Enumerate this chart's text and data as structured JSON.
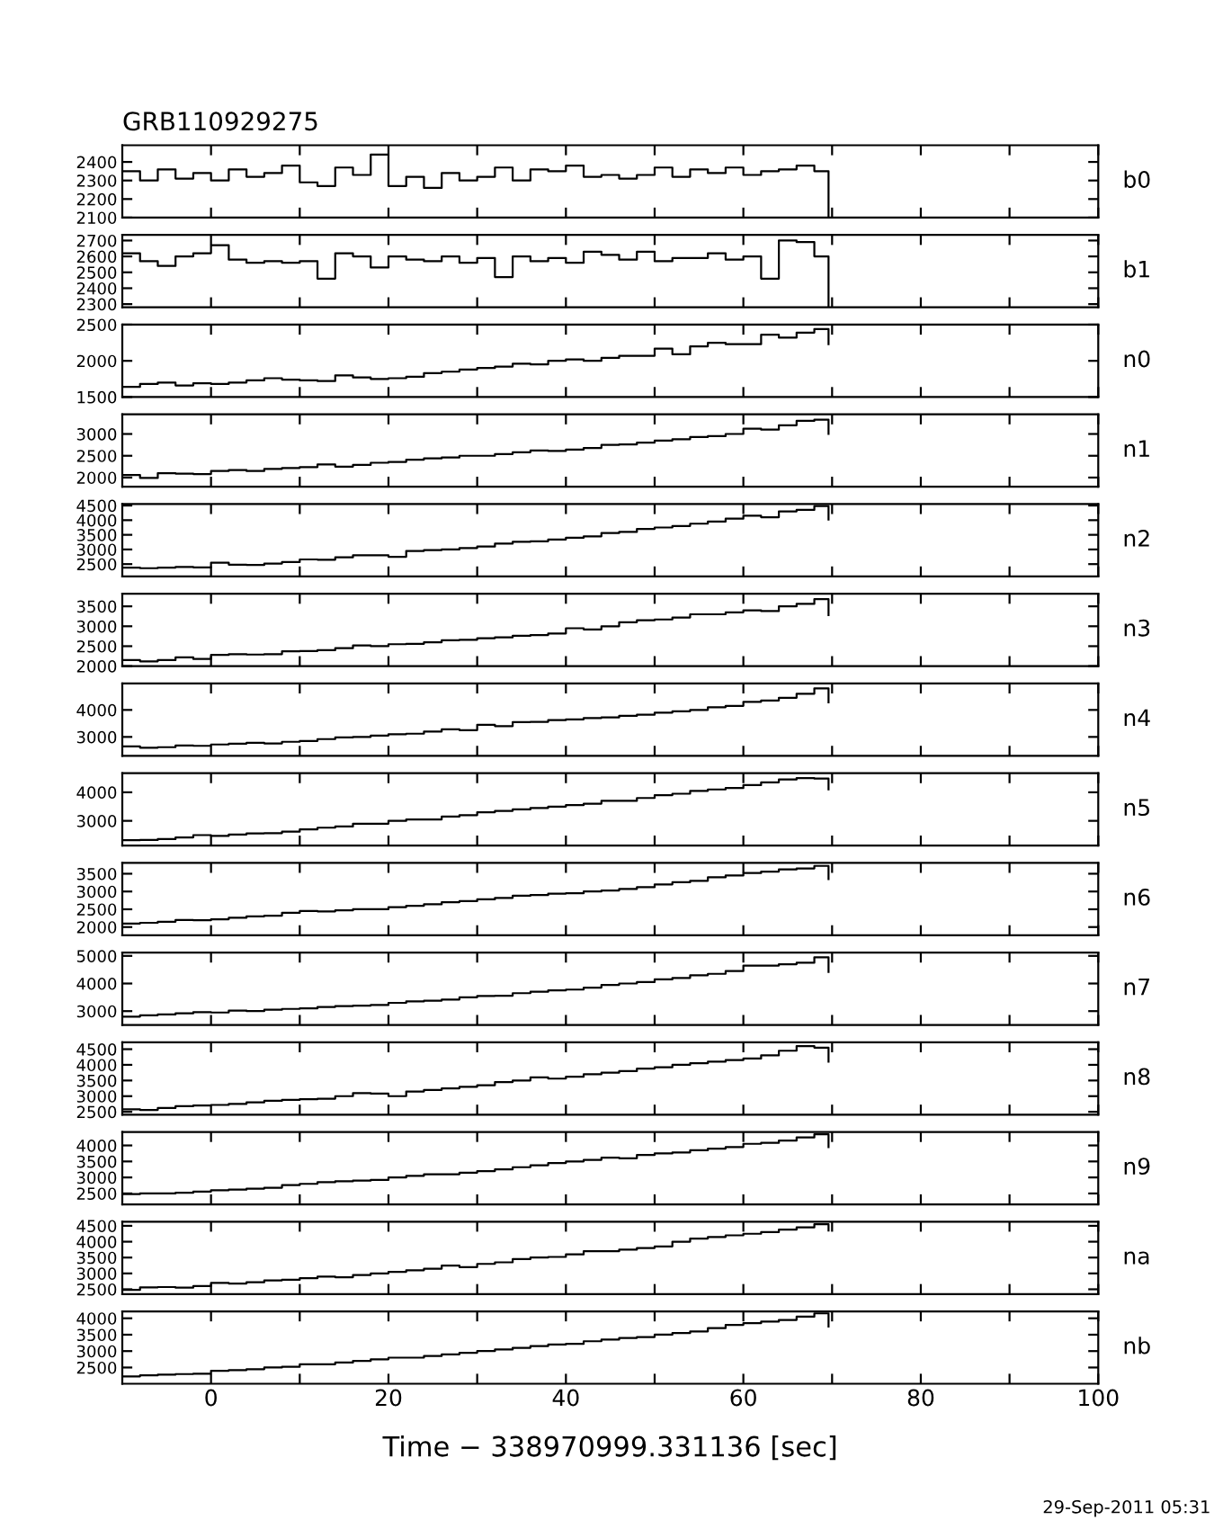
{
  "chart_data": [
    {
      "type": "step",
      "title": "GRB110929275",
      "y2label": "b0",
      "color": "#000000",
      "tick_labels": "y",
      "xlim": [
        -10,
        100
      ],
      "xticks": [
        0,
        {
          "value": 10,
          "label": null
        },
        20,
        {
          "value": 30,
          "label": null
        },
        40,
        {
          "value": 50,
          "label": null
        },
        60,
        {
          "value": 70,
          "label": null
        },
        80,
        {
          "value": 90,
          "label": null
        },
        100
      ],
      "ylim": [
        2100,
        2490
      ],
      "yticks": [
        2100,
        2200,
        2300,
        2400
      ],
      "x": [
        -10,
        -8,
        -6,
        -4,
        -2,
        0,
        2,
        4,
        6,
        8,
        10,
        12,
        14,
        16,
        18,
        20,
        22,
        24,
        26,
        28,
        30,
        32,
        34,
        36,
        38,
        40,
        42,
        44,
        46,
        48,
        50,
        52,
        54,
        56,
        58,
        60,
        62,
        64,
        66,
        68,
        69.6
      ],
      "values": [
        2350,
        2300,
        2360,
        2310,
        2340,
        2300,
        2360,
        2320,
        2340,
        2380,
        2290,
        2270,
        2370,
        2330,
        2440,
        2270,
        2320,
        2260,
        2340,
        2300,
        2320,
        2370,
        2300,
        2360,
        2350,
        2380,
        2320,
        2330,
        2310,
        2330,
        2370,
        2320,
        2360,
        2340,
        2370,
        2330,
        2350,
        2360,
        2380,
        2350,
        2110
      ]
    },
    {
      "type": "step",
      "y2label": "b1",
      "color": "#000000",
      "tick_labels": "y",
      "xlim": [
        -10,
        100
      ],
      "xticks": [
        0,
        {
          "value": 10,
          "label": null
        },
        20,
        {
          "value": 30,
          "label": null
        },
        40,
        {
          "value": 50,
          "label": null
        },
        60,
        {
          "value": 70,
          "label": null
        },
        80,
        {
          "value": 90,
          "label": null
        },
        100
      ],
      "ylim": [
        2280,
        2735
      ],
      "yticks": [
        2300,
        2400,
        2500,
        2600,
        2700
      ],
      "x": [
        -10,
        -8,
        -6,
        -4,
        -2,
        0,
        2,
        4,
        6,
        8,
        10,
        12,
        14,
        16,
        18,
        20,
        22,
        24,
        26,
        28,
        30,
        32,
        34,
        36,
        38,
        40,
        42,
        44,
        46,
        48,
        50,
        52,
        54,
        56,
        58,
        60,
        62,
        64,
        66,
        68,
        69.6
      ],
      "values": [
        2620,
        2570,
        2540,
        2600,
        2620,
        2670,
        2580,
        2560,
        2570,
        2560,
        2570,
        2460,
        2620,
        2600,
        2530,
        2600,
        2580,
        2570,
        2600,
        2560,
        2590,
        2470,
        2600,
        2570,
        2590,
        2560,
        2630,
        2610,
        2580,
        2630,
        2570,
        2590,
        2590,
        2620,
        2580,
        2600,
        2460,
        2700,
        2690,
        2600,
        2290
      ]
    },
    {
      "type": "step",
      "y2label": "n0",
      "color": "#000000",
      "tick_labels": "y",
      "xlim": [
        -10,
        100
      ],
      "xticks": [
        0,
        {
          "value": 10,
          "label": null
        },
        20,
        {
          "value": 30,
          "label": null
        },
        40,
        {
          "value": 50,
          "label": null
        },
        60,
        {
          "value": 70,
          "label": null
        },
        80,
        {
          "value": 90,
          "label": null
        },
        100
      ],
      "ylim": [
        1500,
        2500
      ],
      "yticks": [
        1500,
        2000,
        2500
      ],
      "x": [
        -10,
        -8,
        -6,
        -4,
        -2,
        0,
        2,
        4,
        6,
        8,
        10,
        12,
        14,
        16,
        18,
        20,
        22,
        24,
        26,
        28,
        30,
        32,
        34,
        36,
        38,
        40,
        42,
        44,
        46,
        48,
        50,
        52,
        54,
        56,
        58,
        60,
        62,
        64,
        66,
        68,
        69.6
      ],
      "values": [
        1640,
        1680,
        1700,
        1660,
        1690,
        1680,
        1700,
        1730,
        1760,
        1740,
        1730,
        1720,
        1800,
        1770,
        1750,
        1760,
        1780,
        1830,
        1850,
        1880,
        1900,
        1920,
        1960,
        1950,
        2000,
        2020,
        2000,
        2040,
        2070,
        2070,
        2170,
        2090,
        2200,
        2250,
        2230,
        2230,
        2360,
        2320,
        2390,
        2440,
        2230
      ]
    },
    {
      "type": "step",
      "y2label": "n1",
      "color": "#000000",
      "tick_labels": "y",
      "xlim": [
        -10,
        100
      ],
      "xticks": [
        0,
        {
          "value": 10,
          "label": null
        },
        20,
        {
          "value": 30,
          "label": null
        },
        40,
        {
          "value": 50,
          "label": null
        },
        60,
        {
          "value": 70,
          "label": null
        },
        80,
        {
          "value": 90,
          "label": null
        },
        100
      ],
      "ylim": [
        1790,
        3450
      ],
      "yticks": [
        2000,
        2500,
        3000
      ],
      "x": [
        -10,
        -8,
        -6,
        -4,
        -2,
        0,
        2,
        4,
        6,
        8,
        10,
        12,
        14,
        16,
        18,
        20,
        22,
        24,
        26,
        28,
        30,
        32,
        34,
        36,
        38,
        40,
        42,
        44,
        46,
        48,
        50,
        52,
        54,
        56,
        58,
        60,
        62,
        64,
        66,
        68,
        69.6
      ],
      "values": [
        2060,
        1990,
        2100,
        2090,
        2080,
        2150,
        2170,
        2150,
        2200,
        2220,
        2240,
        2300,
        2250,
        2290,
        2340,
        2360,
        2410,
        2440,
        2460,
        2500,
        2500,
        2540,
        2580,
        2620,
        2610,
        2640,
        2680,
        2750,
        2760,
        2800,
        2850,
        2880,
        2930,
        2950,
        3000,
        3120,
        3100,
        3200,
        3300,
        3330,
        3000
      ]
    },
    {
      "type": "step",
      "y2label": "n2",
      "color": "#000000",
      "tick_labels": "y",
      "xlim": [
        -10,
        100
      ],
      "xticks": [
        0,
        {
          "value": 10,
          "label": null
        },
        20,
        {
          "value": 30,
          "label": null
        },
        40,
        {
          "value": 50,
          "label": null
        },
        60,
        {
          "value": 70,
          "label": null
        },
        80,
        {
          "value": 90,
          "label": null
        },
        100
      ],
      "ylim": [
        2080,
        4550
      ],
      "yticks": [
        2500,
        3000,
        3500,
        4000,
        4500
      ],
      "x": [
        -10,
        -8,
        -6,
        -4,
        -2,
        0,
        2,
        4,
        6,
        8,
        10,
        12,
        14,
        16,
        18,
        20,
        22,
        24,
        26,
        28,
        30,
        32,
        34,
        36,
        38,
        40,
        42,
        44,
        46,
        48,
        50,
        52,
        54,
        56,
        58,
        60,
        62,
        64,
        66,
        68,
        69.6
      ],
      "values": [
        2380,
        2360,
        2380,
        2400,
        2390,
        2550,
        2480,
        2470,
        2520,
        2570,
        2660,
        2650,
        2730,
        2800,
        2800,
        2750,
        2950,
        2980,
        3000,
        3050,
        3100,
        3200,
        3260,
        3280,
        3340,
        3400,
        3450,
        3560,
        3600,
        3700,
        3750,
        3800,
        3880,
        3950,
        4050,
        4150,
        4100,
        4300,
        4350,
        4480,
        4020
      ]
    },
    {
      "type": "step",
      "y2label": "n3",
      "color": "#000000",
      "tick_labels": "y",
      "xlim": [
        -10,
        100
      ],
      "xticks": [
        0,
        {
          "value": 10,
          "label": null
        },
        20,
        {
          "value": 30,
          "label": null
        },
        40,
        {
          "value": 50,
          "label": null
        },
        60,
        {
          "value": 70,
          "label": null
        },
        80,
        {
          "value": 90,
          "label": null
        },
        100
      ],
      "ylim": [
        2000,
        3815
      ],
      "yticks": [
        2000,
        2500,
        3000,
        3500
      ],
      "x": [
        -10,
        -8,
        -6,
        -4,
        -2,
        0,
        2,
        4,
        6,
        8,
        10,
        12,
        14,
        16,
        18,
        20,
        22,
        24,
        26,
        28,
        30,
        32,
        34,
        36,
        38,
        40,
        42,
        44,
        46,
        48,
        50,
        52,
        54,
        56,
        58,
        60,
        62,
        64,
        66,
        68,
        69.6
      ],
      "values": [
        2150,
        2120,
        2150,
        2220,
        2180,
        2280,
        2300,
        2290,
        2300,
        2370,
        2380,
        2400,
        2450,
        2520,
        2500,
        2550,
        2560,
        2600,
        2650,
        2660,
        2700,
        2720,
        2760,
        2780,
        2820,
        2950,
        2920,
        3000,
        3100,
        3150,
        3170,
        3220,
        3300,
        3300,
        3350,
        3400,
        3380,
        3500,
        3560,
        3680,
        3280
      ]
    },
    {
      "type": "step",
      "y2label": "n4",
      "color": "#000000",
      "tick_labels": "y",
      "xlim": [
        -10,
        100
      ],
      "xticks": [
        0,
        {
          "value": 10,
          "label": null
        },
        20,
        {
          "value": 30,
          "label": null
        },
        40,
        {
          "value": 50,
          "label": null
        },
        60,
        {
          "value": 70,
          "label": null
        },
        80,
        {
          "value": 90,
          "label": null
        },
        100
      ],
      "ylim": [
        2300,
        4980
      ],
      "yticks": [
        3000,
        4000
      ],
      "x": [
        -10,
        -8,
        -6,
        -4,
        -2,
        0,
        2,
        4,
        6,
        8,
        10,
        12,
        14,
        16,
        18,
        20,
        22,
        24,
        26,
        28,
        30,
        32,
        34,
        36,
        38,
        40,
        42,
        44,
        46,
        48,
        50,
        52,
        54,
        56,
        58,
        60,
        62,
        64,
        66,
        68,
        69.6
      ],
      "values": [
        2650,
        2600,
        2620,
        2680,
        2670,
        2720,
        2750,
        2780,
        2760,
        2820,
        2850,
        2920,
        2980,
        3000,
        3050,
        3100,
        3120,
        3200,
        3280,
        3250,
        3450,
        3400,
        3550,
        3560,
        3620,
        3650,
        3700,
        3720,
        3780,
        3820,
        3900,
        3950,
        4000,
        4100,
        4150,
        4300,
        4350,
        4450,
        4600,
        4800,
        4280
      ]
    },
    {
      "type": "step",
      "y2label": "n5",
      "color": "#000000",
      "tick_labels": "y",
      "xlim": [
        -10,
        100
      ],
      "xticks": [
        0,
        {
          "value": 10,
          "label": null
        },
        20,
        {
          "value": 30,
          "label": null
        },
        40,
        {
          "value": 50,
          "label": null
        },
        60,
        {
          "value": 70,
          "label": null
        },
        80,
        {
          "value": 90,
          "label": null
        },
        100
      ],
      "ylim": [
        2135,
        4670
      ],
      "yticks": [
        3000,
        4000
      ],
      "x": [
        -10,
        -8,
        -6,
        -4,
        -2,
        0,
        2,
        4,
        6,
        8,
        10,
        12,
        14,
        16,
        18,
        20,
        22,
        24,
        26,
        28,
        30,
        32,
        34,
        36,
        38,
        40,
        42,
        44,
        46,
        48,
        50,
        52,
        54,
        56,
        58,
        60,
        62,
        64,
        66,
        68,
        69.6
      ],
      "values": [
        2320,
        2330,
        2360,
        2420,
        2500,
        2470,
        2520,
        2560,
        2570,
        2620,
        2700,
        2760,
        2800,
        2900,
        2900,
        3000,
        3050,
        3050,
        3150,
        3200,
        3300,
        3350,
        3400,
        3450,
        3500,
        3550,
        3600,
        3700,
        3700,
        3800,
        3900,
        3950,
        4050,
        4100,
        4150,
        4250,
        4350,
        4450,
        4500,
        4480,
        4100
      ]
    },
    {
      "type": "step",
      "y2label": "n6",
      "color": "#000000",
      "tick_labels": "y",
      "xlim": [
        -10,
        100
      ],
      "xticks": [
        0,
        {
          "value": 10,
          "label": null
        },
        20,
        {
          "value": 30,
          "label": null
        },
        40,
        {
          "value": 50,
          "label": null
        },
        60,
        {
          "value": 70,
          "label": null
        },
        80,
        {
          "value": 90,
          "label": null
        },
        100
      ],
      "ylim": [
        1770,
        3805
      ],
      "yticks": [
        2000,
        2500,
        3000,
        3500
      ],
      "x": [
        -10,
        -8,
        -6,
        -4,
        -2,
        0,
        2,
        4,
        6,
        8,
        10,
        12,
        14,
        16,
        18,
        20,
        22,
        24,
        26,
        28,
        30,
        32,
        34,
        36,
        38,
        40,
        42,
        44,
        46,
        48,
        50,
        52,
        54,
        56,
        58,
        60,
        62,
        64,
        66,
        68,
        69.6
      ],
      "values": [
        2100,
        2120,
        2150,
        2200,
        2190,
        2220,
        2260,
        2300,
        2320,
        2400,
        2450,
        2440,
        2470,
        2500,
        2500,
        2560,
        2600,
        2640,
        2700,
        2730,
        2780,
        2820,
        2880,
        2900,
        2940,
        2950,
        3000,
        3030,
        3070,
        3120,
        3200,
        3260,
        3300,
        3400,
        3450,
        3520,
        3560,
        3620,
        3650,
        3720,
        3350
      ]
    },
    {
      "type": "step",
      "y2label": "n7",
      "color": "#000000",
      "tick_labels": "y",
      "xlim": [
        -10,
        100
      ],
      "xticks": [
        0,
        {
          "value": 10,
          "label": null
        },
        20,
        {
          "value": 30,
          "label": null
        },
        40,
        {
          "value": 50,
          "label": null
        },
        60,
        {
          "value": 70,
          "label": null
        },
        80,
        {
          "value": 90,
          "label": null
        },
        100
      ],
      "ylim": [
        2500,
        5120
      ],
      "yticks": [
        3000,
        4000,
        5000
      ],
      "x": [
        -10,
        -8,
        -6,
        -4,
        -2,
        0,
        2,
        4,
        6,
        8,
        10,
        12,
        14,
        16,
        18,
        20,
        22,
        24,
        26,
        28,
        30,
        32,
        34,
        36,
        38,
        40,
        42,
        44,
        46,
        48,
        50,
        52,
        54,
        56,
        58,
        60,
        62,
        64,
        66,
        68,
        69.6
      ],
      "values": [
        2800,
        2850,
        2880,
        2920,
        2960,
        2950,
        3020,
        3000,
        3050,
        3080,
        3100,
        3150,
        3180,
        3200,
        3220,
        3300,
        3350,
        3380,
        3420,
        3500,
        3550,
        3560,
        3650,
        3700,
        3750,
        3780,
        3850,
        3950,
        4000,
        4050,
        4150,
        4200,
        4300,
        4350,
        4450,
        4650,
        4650,
        4700,
        4750,
        4950,
        4420
      ]
    },
    {
      "type": "step",
      "y2label": "n8",
      "color": "#000000",
      "tick_labels": "y",
      "xlim": [
        -10,
        100
      ],
      "xticks": [
        0,
        {
          "value": 10,
          "label": null
        },
        20,
        {
          "value": 30,
          "label": null
        },
        40,
        {
          "value": 50,
          "label": null
        },
        60,
        {
          "value": 70,
          "label": null
        },
        80,
        {
          "value": 90,
          "label": null
        },
        100
      ],
      "ylim": [
        2410,
        4720
      ],
      "yticks": [
        2500,
        3000,
        3500,
        4000,
        4500
      ],
      "x": [
        -10,
        -8,
        -6,
        -4,
        -2,
        0,
        2,
        4,
        6,
        8,
        10,
        12,
        14,
        16,
        18,
        20,
        22,
        24,
        26,
        28,
        30,
        32,
        34,
        36,
        38,
        40,
        42,
        44,
        46,
        48,
        50,
        52,
        54,
        56,
        58,
        60,
        62,
        64,
        66,
        68,
        69.6
      ],
      "values": [
        2580,
        2560,
        2620,
        2680,
        2700,
        2720,
        2750,
        2800,
        2850,
        2880,
        2900,
        2920,
        3000,
        3100,
        3080,
        3000,
        3150,
        3200,
        3250,
        3300,
        3350,
        3450,
        3500,
        3600,
        3560,
        3620,
        3700,
        3750,
        3800,
        3880,
        3920,
        4000,
        4050,
        4100,
        4150,
        4200,
        4300,
        4450,
        4600,
        4550,
        4100
      ]
    },
    {
      "type": "step",
      "y2label": "n9",
      "color": "#000000",
      "tick_labels": "y",
      "xlim": [
        -10,
        100
      ],
      "xticks": [
        0,
        {
          "value": 10,
          "label": null
        },
        20,
        {
          "value": 30,
          "label": null
        },
        40,
        {
          "value": 50,
          "label": null
        },
        60,
        {
          "value": 70,
          "label": null
        },
        80,
        {
          "value": 90,
          "label": null
        },
        100
      ],
      "ylim": [
        2160,
        4420
      ],
      "yticks": [
        2500,
        3000,
        3500,
        4000
      ],
      "x": [
        -10,
        -8,
        -6,
        -4,
        -2,
        0,
        2,
        4,
        6,
        8,
        10,
        12,
        14,
        16,
        18,
        20,
        22,
        24,
        26,
        28,
        30,
        32,
        34,
        36,
        38,
        40,
        42,
        44,
        46,
        48,
        50,
        52,
        54,
        56,
        58,
        60,
        62,
        64,
        66,
        68,
        69.6
      ],
      "values": [
        2480,
        2500,
        2500,
        2520,
        2560,
        2600,
        2620,
        2650,
        2680,
        2760,
        2800,
        2850,
        2880,
        2900,
        2920,
        3000,
        3050,
        3100,
        3100,
        3150,
        3200,
        3250,
        3320,
        3380,
        3450,
        3500,
        3550,
        3620,
        3600,
        3700,
        3750,
        3780,
        3850,
        3900,
        3950,
        4050,
        4080,
        4150,
        4250,
        4350,
        3950
      ]
    },
    {
      "type": "step",
      "y2label": "na",
      "color": "#000000",
      "tick_labels": "y",
      "xlim": [
        -10,
        100
      ],
      "xticks": [
        0,
        {
          "value": 10,
          "label": null
        },
        20,
        {
          "value": 30,
          "label": null
        },
        40,
        {
          "value": 50,
          "label": null
        },
        60,
        {
          "value": 70,
          "label": null
        },
        80,
        {
          "value": 90,
          "label": null
        },
        100
      ],
      "ylim": [
        2350,
        4630
      ],
      "yticks": [
        2500,
        3000,
        3500,
        4000,
        4500
      ],
      "x": [
        -10,
        -8,
        -6,
        -4,
        -2,
        0,
        2,
        4,
        6,
        8,
        10,
        12,
        14,
        16,
        18,
        20,
        22,
        24,
        26,
        28,
        30,
        32,
        34,
        36,
        38,
        40,
        42,
        44,
        46,
        48,
        50,
        52,
        54,
        56,
        58,
        60,
        62,
        64,
        66,
        68,
        69.6
      ],
      "values": [
        2480,
        2560,
        2570,
        2550,
        2600,
        2700,
        2680,
        2720,
        2780,
        2800,
        2850,
        2900,
        2880,
        2950,
        3000,
        3050,
        3100,
        3150,
        3250,
        3200,
        3300,
        3350,
        3450,
        3500,
        3520,
        3600,
        3700,
        3700,
        3750,
        3800,
        3850,
        4000,
        4100,
        4150,
        4200,
        4250,
        4300,
        4380,
        4450,
        4550,
        4350
      ]
    },
    {
      "type": "step",
      "y2label": "nb",
      "color": "#000000",
      "xlabel": "Time − 338970999.331136 [sec]",
      "annotations": [
        "29-Sep-2011 05:31"
      ],
      "xlim": [
        -10,
        100
      ],
      "xticks": [
        0,
        {
          "value": 10,
          "label": null
        },
        20,
        {
          "value": 30,
          "label": null
        },
        40,
        {
          "value": 50,
          "label": null
        },
        60,
        {
          "value": 70,
          "label": null
        },
        80,
        {
          "value": 90,
          "label": null
        },
        100
      ],
      "ylim": [
        2005,
        4210
      ],
      "yticks": [
        2500,
        3000,
        3500,
        4000
      ],
      "x": [
        -10,
        -8,
        -6,
        -4,
        -2,
        0,
        2,
        4,
        6,
        8,
        10,
        12,
        14,
        16,
        18,
        20,
        22,
        24,
        26,
        28,
        30,
        32,
        34,
        36,
        38,
        40,
        42,
        44,
        46,
        48,
        50,
        52,
        54,
        56,
        58,
        60,
        62,
        64,
        66,
        68,
        69.6
      ],
      "values": [
        2230,
        2260,
        2280,
        2300,
        2310,
        2400,
        2420,
        2450,
        2500,
        2520,
        2600,
        2600,
        2650,
        2700,
        2750,
        2800,
        2800,
        2850,
        2900,
        2950,
        3000,
        3050,
        3100,
        3150,
        3200,
        3220,
        3300,
        3350,
        3400,
        3430,
        3500,
        3550,
        3600,
        3700,
        3800,
        3850,
        3900,
        3950,
        4050,
        4150,
        3750
      ]
    }
  ]
}
